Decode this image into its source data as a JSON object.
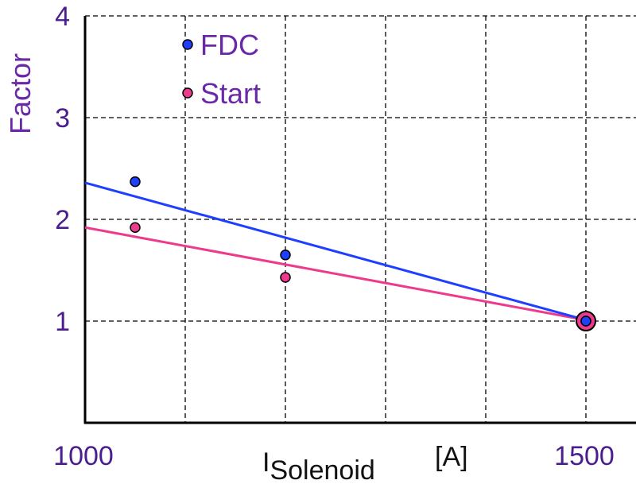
{
  "chart_data": {
    "type": "scatter",
    "xlabel_main": "I",
    "xlabel_sub": "Solenoid",
    "xlabel_unit": "[A]",
    "ylabel": "Factor",
    "xlim": [
      1000,
      1550
    ],
    "ylim": [
      0,
      4
    ],
    "x_ticks": [
      1000,
      1500
    ],
    "x_tick_labels": [
      "1000",
      "1500"
    ],
    "y_ticks": [
      1,
      2,
      3,
      4
    ],
    "y_tick_labels": [
      "1",
      "2",
      "3",
      "4"
    ],
    "x_grid": [
      1100,
      1200,
      1300,
      1400,
      1500
    ],
    "y_grid": [
      1,
      2,
      3,
      4
    ],
    "grid": true,
    "legend_placement": "top-left",
    "series": [
      {
        "name": "FDC",
        "color": "#1f3fff",
        "points": [
          [
            1050,
            2.37
          ],
          [
            1200,
            1.65
          ],
          [
            1500,
            1.0
          ]
        ],
        "fit_line": [
          [
            1000,
            2.36
          ],
          [
            1500,
            1.01
          ]
        ]
      },
      {
        "name": "Start",
        "color": "#ee3a8c",
        "points": [
          [
            1050,
            1.92
          ],
          [
            1200,
            1.43
          ],
          [
            1500,
            1.0
          ]
        ],
        "fit_line": [
          [
            1000,
            1.92
          ],
          [
            1500,
            1.01
          ]
        ]
      }
    ]
  }
}
